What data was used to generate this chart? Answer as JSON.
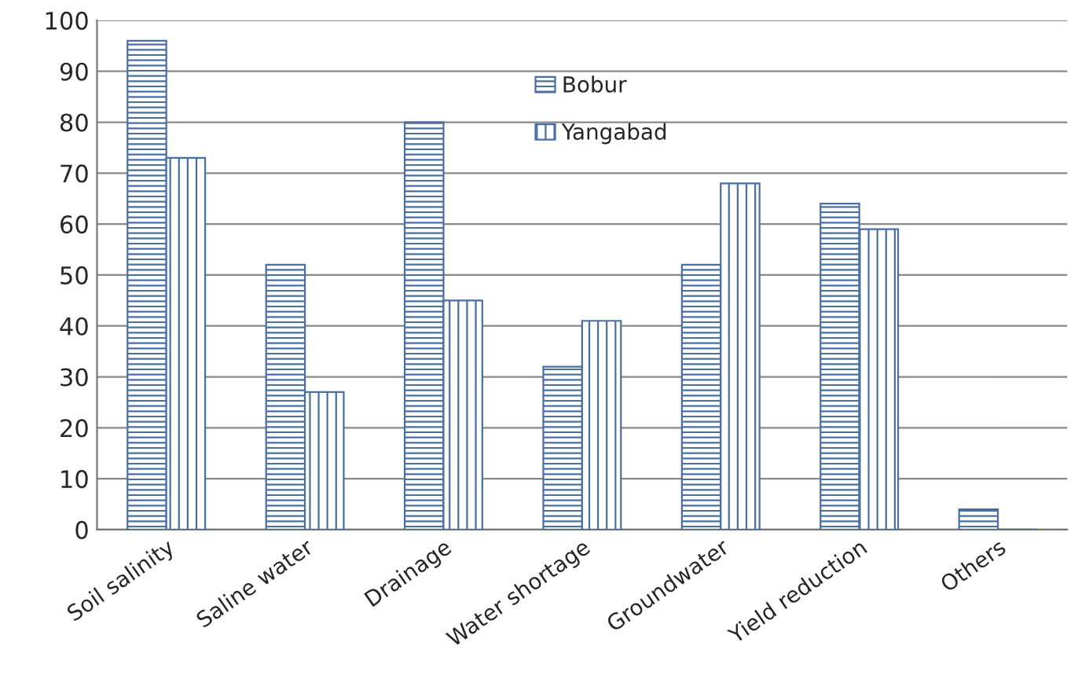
{
  "chart_data": {
    "type": "bar",
    "categories": [
      "Soil salinity",
      "Saline water",
      "Drainage",
      "Water shortage",
      "Groundwater",
      "Yield reduction",
      "Others"
    ],
    "series": [
      {
        "name": "Bobur",
        "color": "#4a6fa5",
        "values": [
          96,
          52,
          80,
          32,
          52,
          64,
          4
        ]
      },
      {
        "name": "Yangabad",
        "color": "#4a6fa5",
        "values": [
          73,
          27,
          45,
          41,
          68,
          59,
          0
        ]
      }
    ],
    "ylim": [
      0,
      100
    ],
    "yticks": [
      0,
      10,
      20,
      30,
      40,
      50,
      60,
      70,
      80,
      90,
      100
    ],
    "grid": "y",
    "legend": "top"
  }
}
